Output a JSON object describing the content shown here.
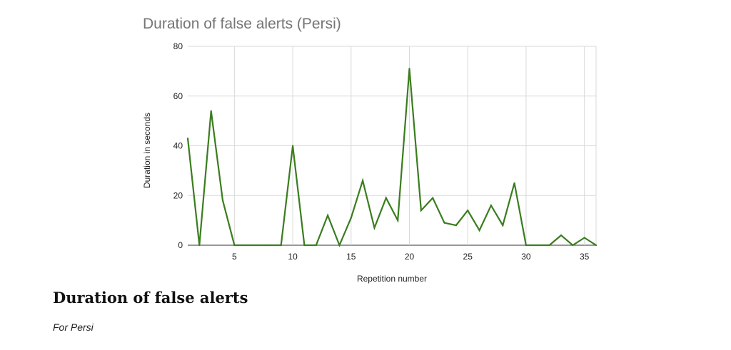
{
  "chart_data": {
    "type": "line",
    "title": "Duration of false alerts (Persi)",
    "xlabel": "Repetition number",
    "ylabel": "Duration in seconds",
    "xlim": [
      1,
      36
    ],
    "ylim": [
      0,
      80
    ],
    "x_ticks": [
      5,
      10,
      15,
      20,
      25,
      30,
      35
    ],
    "y_ticks": [
      0,
      20,
      40,
      60,
      80
    ],
    "grid": true,
    "legend": "none",
    "color": "#3a7d1e",
    "x": [
      1,
      2,
      3,
      4,
      5,
      6,
      7,
      8,
      9,
      10,
      11,
      12,
      13,
      14,
      15,
      16,
      17,
      18,
      19,
      20,
      21,
      22,
      23,
      24,
      25,
      26,
      27,
      28,
      29,
      30,
      31,
      32,
      33,
      34,
      35,
      36
    ],
    "series": [
      {
        "values": [
          43,
          0,
          54,
          18,
          0,
          0,
          0,
          0,
          0,
          40,
          0,
          0,
          12,
          0,
          11,
          26,
          7,
          19,
          10,
          71,
          14,
          19,
          9,
          8,
          14,
          6,
          16,
          8,
          25,
          0,
          0,
          0,
          4,
          0,
          3,
          0
        ]
      }
    ]
  },
  "caption": {
    "title": "Duration of false alerts",
    "subtitle": "For Persi"
  }
}
